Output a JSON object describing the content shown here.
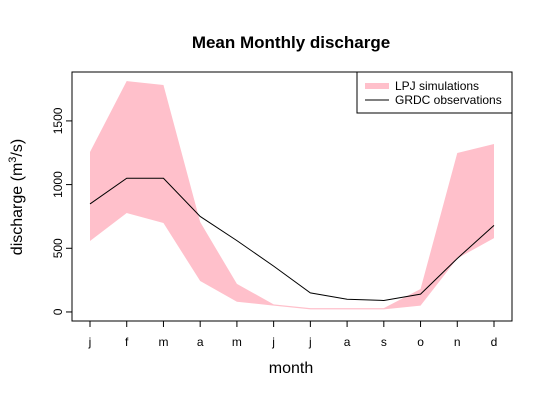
{
  "chart_data": {
    "type": "band-line",
    "title": "Mean Monthly discharge",
    "xlabel": "month",
    "ylabel": [
      "discharge (m",
      "3",
      "/s)"
    ],
    "categories": [
      "j",
      "f",
      "m",
      "a",
      "m",
      "j",
      "j",
      "a",
      "s",
      "o",
      "n",
      "d"
    ],
    "series": [
      {
        "name": "LPJ simulations",
        "color": "#ffc0cb",
        "upper": [
          1256,
          1813,
          1782,
          706,
          220,
          60,
          30,
          30,
          30,
          180,
          1248,
          1319
        ],
        "lower": [
          557,
          777,
          698,
          243,
          80,
          50,
          20,
          20,
          20,
          50,
          420,
          580
        ]
      },
      {
        "name": "GRDC observations",
        "color": "#000000",
        "values": [
          848,
          1050,
          1050,
          750,
          560,
          360,
          150,
          100,
          90,
          140,
          420,
          680
        ]
      }
    ],
    "ylim": [
      -71,
      1884
    ],
    "yticks": [
      0,
      500,
      1000,
      1500
    ],
    "legend": "topright"
  }
}
